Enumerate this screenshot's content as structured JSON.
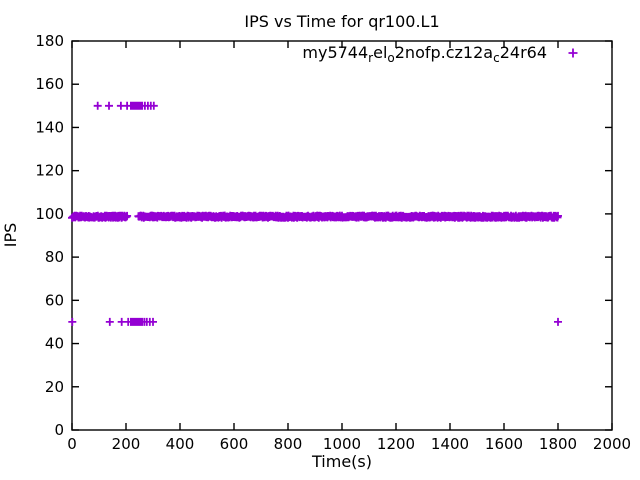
{
  "chart_data": {
    "type": "scatter",
    "title": "IPS vs Time for qr100.L1",
    "xlabel": "Time(s)",
    "ylabel": "IPS",
    "xlim": [
      0,
      2000
    ],
    "ylim": [
      0,
      180
    ],
    "xticks": [
      0,
      200,
      400,
      600,
      800,
      1000,
      1200,
      1400,
      1600,
      1800,
      2000
    ],
    "yticks": [
      0,
      20,
      40,
      60,
      80,
      100,
      120,
      140,
      160,
      180
    ],
    "grid": false,
    "legend_position": "inside-top-right",
    "marker": "plus",
    "series_color": "#9400D3",
    "axis_color": "#000000",
    "background_color": "#ffffff",
    "legend": {
      "label_plain": "my5744_rel_o2nofp.cz12a_c24r64",
      "segments": [
        {
          "text": "my5744",
          "sub": false
        },
        {
          "text": "r",
          "sub": true
        },
        {
          "text": "el",
          "sub": false
        },
        {
          "text": "o",
          "sub": true
        },
        {
          "text": "2nofp.cz12a",
          "sub": false
        },
        {
          "text": "c",
          "sub": true
        },
        {
          "text": "24r64",
          "sub": false
        }
      ]
    },
    "series": [
      {
        "name": "my5744_rel_o2nofp.cz12a_c24r64",
        "steady_state_band": {
          "description": "dense horizontal band of points just below IPS=100 from t=0 to t=1800",
          "y_level": 99,
          "y_range": [
            98.2,
            99.2
          ],
          "x_start": 0,
          "x_end": 1800,
          "x_step": 2,
          "gap_x_range": [
            205,
            245
          ]
        },
        "spike_points_y": 150,
        "spike_points_x": [
          95,
          137,
          181,
          204,
          218,
          221,
          224,
          227,
          230,
          233,
          236,
          239,
          242,
          245,
          248,
          252,
          256,
          260,
          270,
          281,
          292,
          303
        ],
        "dip_points_y": 50,
        "dip_points_x": [
          1,
          140,
          184,
          208,
          218,
          222,
          226,
          230,
          234,
          238,
          242,
          246,
          250,
          255,
          260,
          268,
          277,
          288,
          300,
          1800
        ]
      }
    ]
  }
}
